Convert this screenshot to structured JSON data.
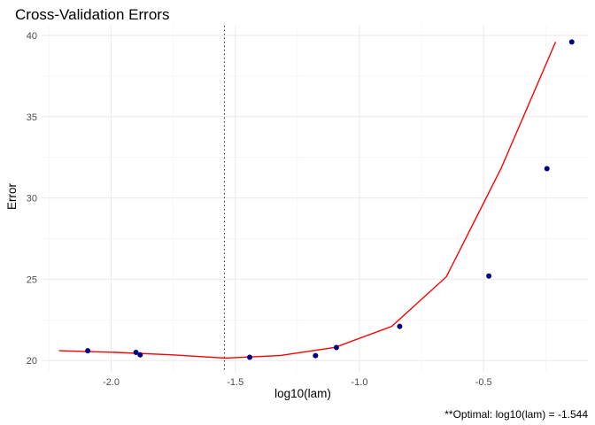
{
  "chart_data": {
    "type": "scatter",
    "title": "Cross-Validation Errors",
    "xlabel": "log10(lam)",
    "ylabel": "Error",
    "caption": "**Optimal: log10(lam) = -1.544",
    "xlim": [
      -2.28,
      -0.08
    ],
    "ylim": [
      19.3,
      40.6
    ],
    "x_ticks": [
      -2.0,
      -1.5,
      -1.0,
      -0.5
    ],
    "x_tick_labels": [
      "-2.0",
      "-1.5",
      "-1.0",
      "-0.5"
    ],
    "y_ticks": [
      20,
      25,
      30,
      35,
      40
    ],
    "y_tick_labels": [
      "20",
      "25",
      "30",
      "35",
      "40"
    ],
    "grid": true,
    "vline_x": -1.544,
    "points_color": "#000080",
    "line_color": "#ff0000",
    "vline_color": "#333333",
    "series": [
      {
        "kind": "points",
        "x": [
          -2.094,
          -1.9,
          -1.883,
          -1.442,
          -1.177,
          -1.093,
          -0.838,
          -0.479,
          -0.245,
          -0.145
        ],
        "y": [
          20.6,
          20.5,
          20.35,
          20.2,
          20.3,
          20.8,
          22.1,
          25.2,
          31.8,
          39.6
        ]
      },
      {
        "kind": "line",
        "x": [
          -2.21,
          -1.98,
          -1.76,
          -1.54,
          -1.32,
          -1.1,
          -0.87,
          -0.65,
          -0.43,
          -0.21
        ],
        "y": [
          20.6,
          20.5,
          20.35,
          20.15,
          20.3,
          20.8,
          22.1,
          25.15,
          31.8,
          39.6
        ]
      }
    ]
  }
}
